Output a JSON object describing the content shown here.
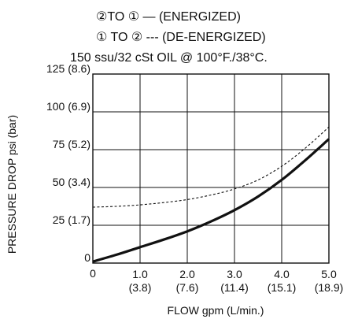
{
  "chart_data": {
    "type": "line",
    "header_lines": [
      "②TO ① — (ENERGIZED)",
      "① TO ② --- (DE-ENERGIZED)",
      "150 ssu/32 cSt OIL @ 100°F./38°C."
    ],
    "xlabel": "FLOW gpm (L/min.)",
    "ylabel": "PRESSURE DROP psi (bar)",
    "xlim": [
      0,
      5
    ],
    "ylim": [
      0,
      125
    ],
    "grid": true,
    "x_ticks": [
      {
        "value": 0,
        "label": "0",
        "sub": ""
      },
      {
        "value": 1,
        "label": "1.0",
        "sub": "(3.8)"
      },
      {
        "value": 2,
        "label": "2.0",
        "sub": "(7.6)"
      },
      {
        "value": 3,
        "label": "3.0",
        "sub": "(11.4)"
      },
      {
        "value": 4,
        "label": "4.0",
        "sub": "(15.1)"
      },
      {
        "value": 5,
        "label": "5.0",
        "sub": "(18.9)"
      }
    ],
    "y_ticks": [
      {
        "value": 0,
        "label": "0"
      },
      {
        "value": 25,
        "label": "25 (1.7)"
      },
      {
        "value": 50,
        "label": "50 (3.4)"
      },
      {
        "value": 75,
        "label": "75 (5.2)"
      },
      {
        "value": 100,
        "label": "100 (6.9)"
      },
      {
        "value": 125,
        "label": "125 (8.6)"
      }
    ],
    "series": [
      {
        "line_style": "solid",
        "x": [
          0,
          0.5,
          1.0,
          1.5,
          2.0,
          2.5,
          3.0,
          3.5,
          4.0,
          4.5,
          5.0
        ],
        "y": [
          1,
          5.5,
          10.5,
          15.5,
          21,
          27.5,
          35,
          44,
          55,
          68,
          82
        ]
      },
      {
        "line_style": "dashed",
        "x": [
          0,
          0.5,
          1.0,
          1.5,
          2.0,
          2.5,
          3.0,
          3.5,
          4.0,
          4.5,
          5.0
        ],
        "y": [
          37,
          37.5,
          38.5,
          40,
          42,
          45,
          49,
          55,
          64,
          76,
          90
        ]
      }
    ]
  }
}
